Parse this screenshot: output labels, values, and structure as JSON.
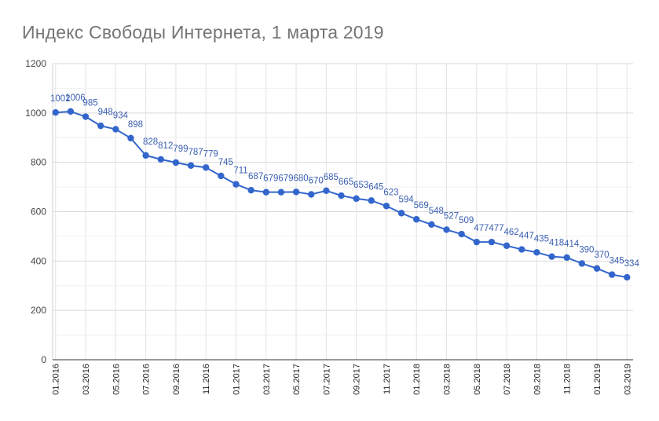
{
  "chart_data": {
    "type": "line",
    "title": "Индекс Свободы Интернета,  1 марта  2019",
    "xlabel": "",
    "ylabel": "",
    "ylim": [
      0,
      1200
    ],
    "yticks": [
      "0",
      "200",
      "400",
      "600",
      "800",
      "1000",
      "1200"
    ],
    "grid": true,
    "legend": "none",
    "line_color": "#3366cc",
    "label_color": "#3a5fb0",
    "categories": [
      "01.2016",
      "02.2016",
      "03.2016",
      "04.2016",
      "05.2016",
      "06.2016",
      "07.2016",
      "08.2016",
      "09.2016",
      "10.2016",
      "11.2016",
      "12.2016",
      "01.2017",
      "02.2017",
      "03.2017",
      "04.2017",
      "05.2017",
      "06.2017",
      "07.2017",
      "08.2017",
      "09.2017",
      "10.2017",
      "11.2017",
      "12.2017",
      "01.2018",
      "02.2018",
      "03.2018",
      "04.2018",
      "05.2018",
      "06.2018",
      "07.2018",
      "08.2018",
      "09.2018",
      "10.2018",
      "11.2018",
      "12.2018",
      "01.2019",
      "02.2019",
      "03.2019"
    ],
    "x_tick_labels": [
      "01.2016",
      "",
      "03.2016",
      "",
      "05.2016",
      "",
      "07.2016",
      "",
      "09.2016",
      "",
      "11.2016",
      "",
      "01.2017",
      "",
      "03.2017",
      "",
      "05.2017",
      "",
      "07.2017",
      "",
      "09.2017",
      "",
      "11.2017",
      "",
      "01.2018",
      "",
      "03.2018",
      "",
      "05.2018",
      "",
      "07.2018",
      "",
      "09.2018",
      "",
      "11.2018",
      "",
      "01.2019",
      "",
      "03.2019"
    ],
    "values": [
      1002,
      1006,
      985,
      948,
      934,
      898,
      828,
      812,
      799,
      787,
      779,
      745,
      711,
      687,
      679,
      679,
      680,
      670,
      685,
      665,
      653,
      645,
      623,
      594,
      569,
      548,
      527,
      509,
      477,
      477,
      462,
      447,
      435,
      418,
      414,
      390,
      370,
      345,
      334
    ],
    "data_labels": [
      "1002",
      "1006",
      "985",
      "948",
      "934",
      "898",
      "828",
      "812",
      "799",
      "787",
      "779",
      "745",
      "711",
      "687",
      "679",
      "679",
      "680",
      "670",
      "685",
      "665",
      "653",
      "645",
      "623",
      "594",
      "569",
      "548",
      "527",
      "509",
      "477",
      "477",
      "462",
      "447",
      "435",
      "418",
      "414",
      "390",
      "370",
      "345",
      "334"
    ]
  }
}
